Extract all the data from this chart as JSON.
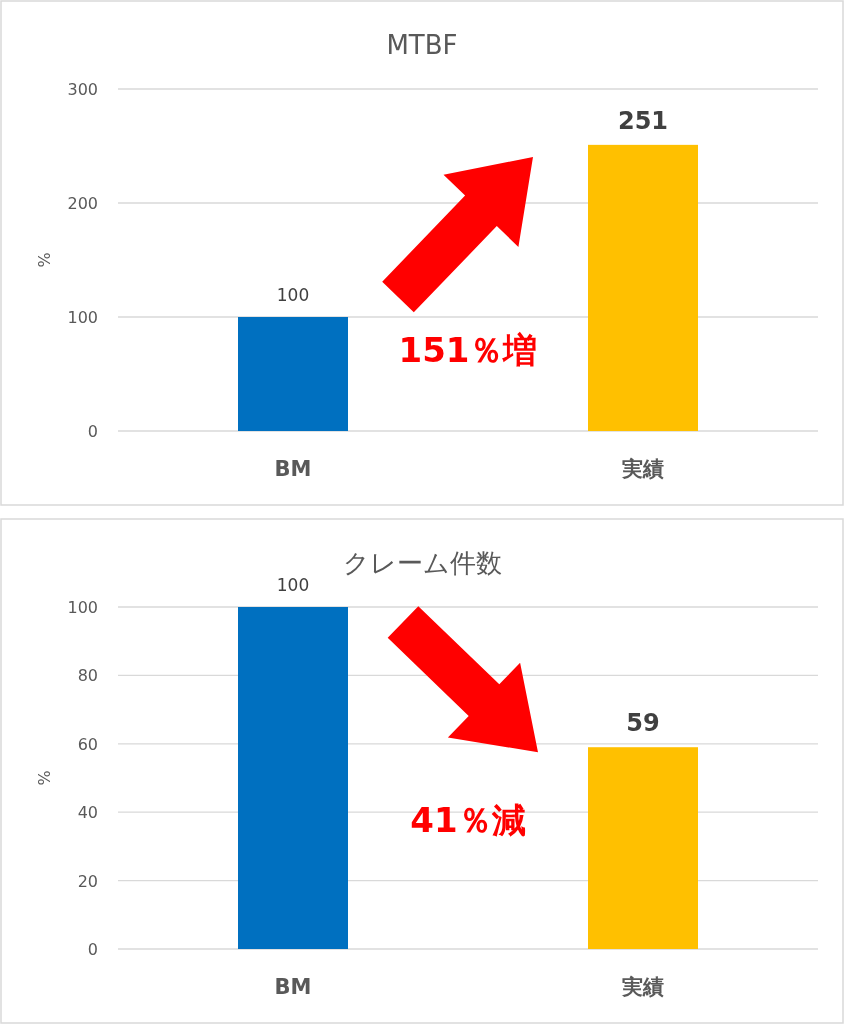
{
  "chart_data": [
    {
      "type": "bar",
      "title": "MTBF",
      "ylabel": "%",
      "categories": [
        "BM",
        "実績"
      ],
      "values": [
        100,
        251
      ],
      "colors": [
        "#0070c0",
        "#ffc000"
      ],
      "ylim": [
        0,
        300
      ],
      "yticks": [
        0,
        100,
        200,
        300
      ],
      "grid": "y",
      "data_labels": true,
      "annotations": [
        "151％増"
      ]
    },
    {
      "type": "bar",
      "title": "クレーム件数",
      "ylabel": "%",
      "categories": [
        "BM",
        "実績"
      ],
      "values": [
        100,
        59
      ],
      "colors": [
        "#0070c0",
        "#ffc000"
      ],
      "ylim": [
        0,
        100
      ],
      "yticks": [
        0,
        20,
        40,
        60,
        80,
        100
      ],
      "grid": "y",
      "data_labels": true,
      "annotations": [
        "41％減"
      ]
    }
  ]
}
